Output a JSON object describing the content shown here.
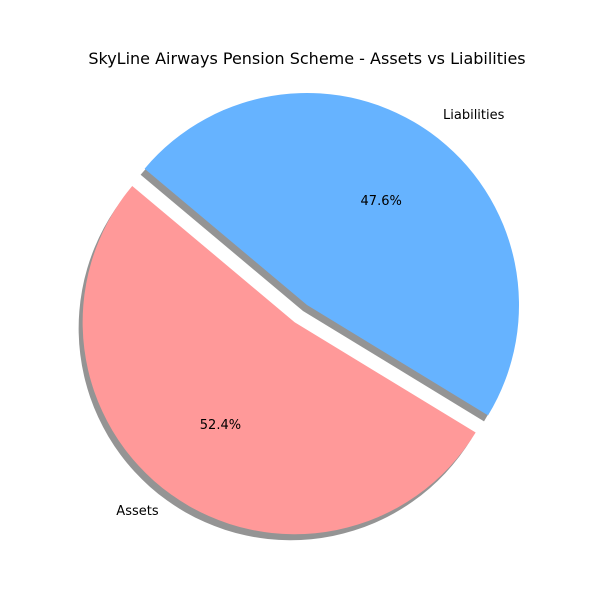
{
  "chart_data": {
    "type": "pie",
    "title": "SkyLine Airways Pension Scheme - Assets vs Liabilities",
    "categories": [
      "Assets",
      "Liabilities"
    ],
    "values": [
      52.4,
      47.6
    ],
    "percent_labels": [
      "52.4%",
      "47.6%"
    ],
    "colors": [
      "#ff9999",
      "#66b3ff"
    ],
    "explode": [
      "Assets"
    ],
    "shadow": true,
    "start_angle_deg": 140,
    "direction": "counterclockwise"
  }
}
